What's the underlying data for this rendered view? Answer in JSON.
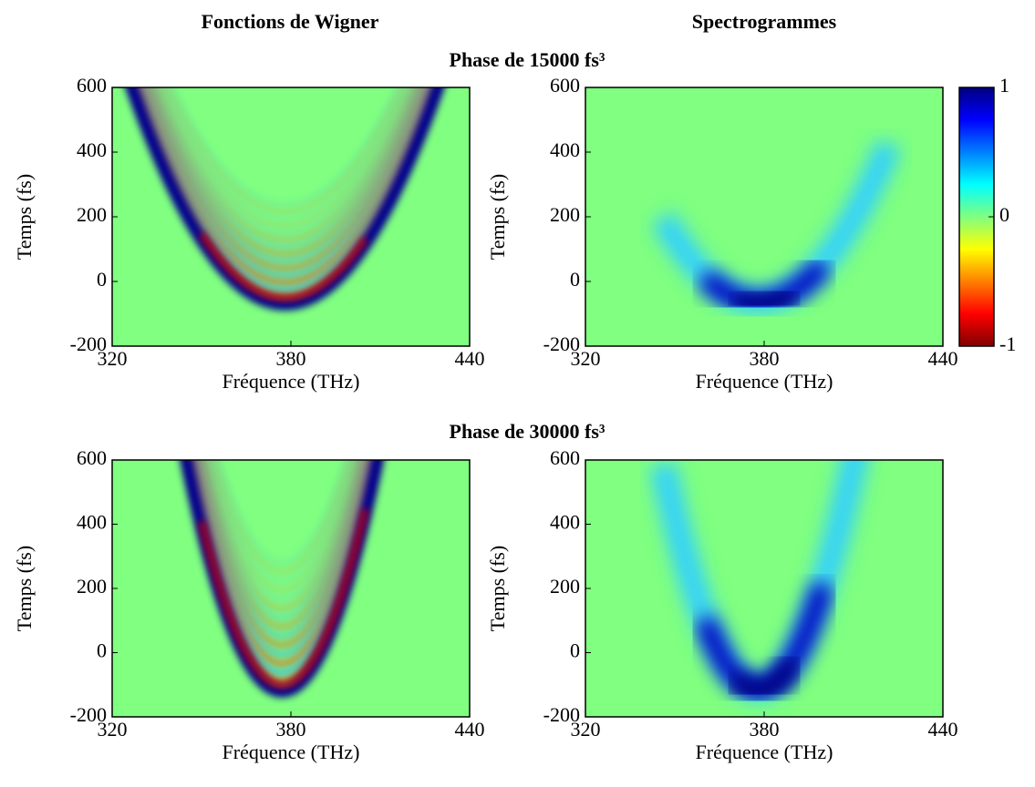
{
  "figure": {
    "column_titles": [
      "Fonctions de Wigner",
      "Spectrogrammes"
    ],
    "row_titles": [
      "Phase de 15000 fs³",
      "Phase de 30000 fs³"
    ]
  },
  "colorbar": {
    "lim": [
      -1,
      1
    ],
    "ticks": [
      -1,
      0,
      1
    ]
  },
  "chart_data": [
    {
      "type": "heatmap",
      "kind": "wigner",
      "xlabel": "Fréquence (THz)",
      "ylabel": "Temps (fs)",
      "xlim": [
        320,
        440
      ],
      "xticks": [
        320,
        380,
        440
      ],
      "ylim": [
        -200,
        600
      ],
      "yticks": [
        -200,
        0,
        200,
        400,
        600
      ]
    },
    {
      "type": "heatmap",
      "kind": "spectrogram",
      "xlabel": "Fréquence (THz)",
      "ylabel": "Temps (fs)",
      "xlim": [
        320,
        440
      ],
      "xticks": [
        320,
        380,
        440
      ],
      "ylim": [
        -200,
        600
      ],
      "yticks": [
        -200,
        0,
        200,
        400,
        600
      ]
    },
    {
      "type": "heatmap",
      "kind": "wigner",
      "xlabel": "Fréquence (THz)",
      "ylabel": "Temps (fs)",
      "xlim": [
        320,
        440
      ],
      "xticks": [
        320,
        380,
        440
      ],
      "ylim": [
        -200,
        600
      ],
      "yticks": [
        -200,
        0,
        200,
        400,
        600
      ]
    },
    {
      "type": "heatmap",
      "kind": "spectrogram",
      "xlabel": "Fréquence (THz)",
      "ylabel": "Temps (fs)",
      "xlim": [
        320,
        440
      ],
      "xticks": [
        320,
        380,
        440
      ],
      "ylim": [
        -200,
        600
      ],
      "yticks": [
        -200,
        0,
        200,
        400,
        600
      ]
    }
  ]
}
